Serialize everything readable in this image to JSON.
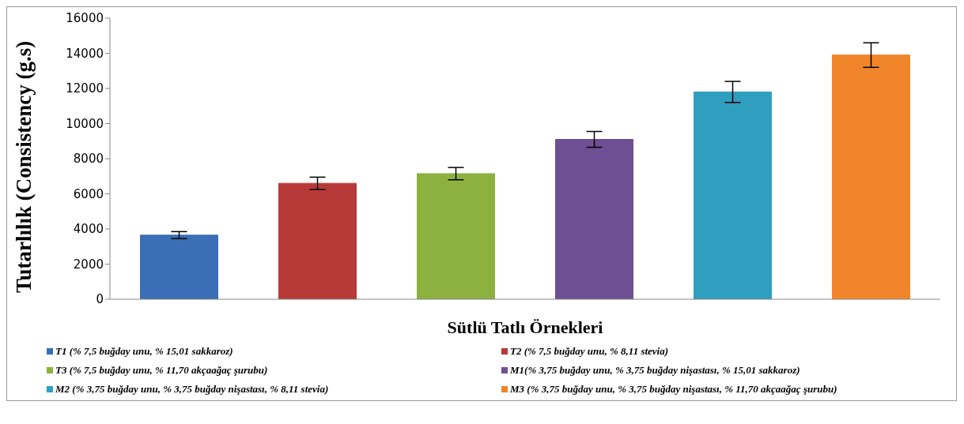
{
  "chart_data": {
    "type": "bar",
    "xlabel": "Sütlü Tatlı Örnekleri",
    "ylabel": "Tutarlılık (Consistency (g.s)",
    "categories": [
      null,
      null,
      null,
      null,
      null,
      null
    ],
    "series": [
      {
        "name": "T1 (% 7,5 buğday unu, % 15,01 sakkaroz)",
        "color": "#3a6fb5",
        "values": [
          3650,
          null,
          null,
          null,
          null,
          null
        ],
        "errors": [
          200,
          null,
          null,
          null,
          null,
          null
        ]
      },
      {
        "name": "T2 (% 7,5 buğday unu, % 8,11 stevia)",
        "color": "#b83a38",
        "values": [
          null,
          6600,
          null,
          null,
          null,
          null
        ],
        "errors": [
          null,
          350,
          null,
          null,
          null,
          null
        ]
      },
      {
        "name": "T3 (% 7,5 buğday unu, % 11,70 akçaağaç şurubu)",
        "color": "#8db13f",
        "values": [
          null,
          null,
          7150,
          null,
          null,
          null
        ],
        "errors": [
          null,
          null,
          350,
          null,
          null,
          null
        ]
      },
      {
        "name": "M1(% 3,75 buğday unu, % 3,75 buğday nişastası, % 15,01 sakkaroz)",
        "color": "#6f4f94",
        "values": [
          null,
          null,
          null,
          9100,
          null,
          null
        ],
        "errors": [
          null,
          null,
          null,
          450,
          null,
          null
        ]
      },
      {
        "name": "M2 (% 3,75 buğday unu, % 3,75 buğday nişastası, % 8,11 stevia)",
        "color": "#309fbf",
        "values": [
          null,
          null,
          null,
          null,
          11800,
          null
        ],
        "errors": [
          null,
          null,
          null,
          null,
          600,
          null
        ]
      },
      {
        "name": "M3 (% 3,75 buğday unu, % 3,75 buğday nişastası, % 11,70 akçaağaç şurubu)",
        "color": "#f0852a",
        "values": [
          null,
          null,
          null,
          null,
          null,
          13900
        ],
        "errors": [
          null,
          null,
          null,
          null,
          null,
          700
        ]
      }
    ],
    "ylim": [
      0,
      16000
    ],
    "yticks": [
      0,
      2000,
      4000,
      6000,
      8000,
      10000,
      12000,
      14000,
      16000
    ],
    "grid": false,
    "legend": "bottom"
  }
}
